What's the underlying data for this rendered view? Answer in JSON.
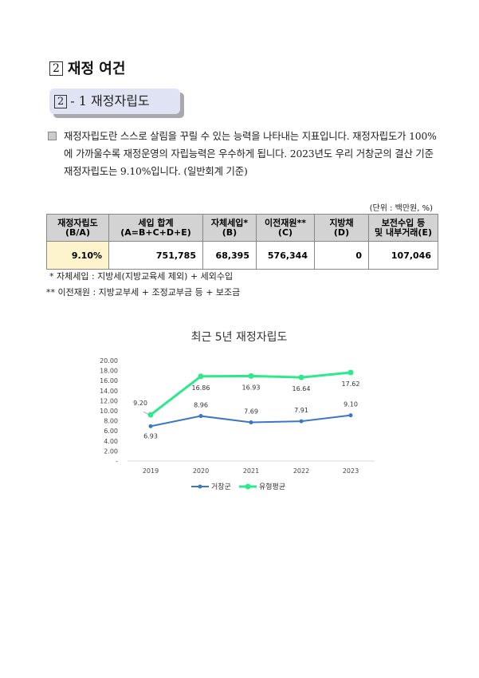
{
  "section": {
    "number": "2",
    "title": "재정 여건"
  },
  "subsection": {
    "number": "2",
    "title": "- 1 재정자립도"
  },
  "bullet_text": "재정자립도란 스스로 살림을 꾸릴 수 있는 능력을 나타내는 지표입니다. 재정자립도가 100%에 가까울수록 재정운영의 자립능력은 우수하게 됩니다. 2023년도 우리 거창군의 결산 기준 재정자립도는 9.10%입니다. (일반회계 기준)",
  "unit": "(단위 : 백만원, %)",
  "table": {
    "headers": [
      [
        "재정자립도",
        "(B/A)"
      ],
      [
        "세입 합계",
        "(A=B+C+D+E)"
      ],
      [
        "자체세입*",
        "(B)"
      ],
      [
        "이전재원**",
        "(C)"
      ],
      [
        "지방채",
        "(D)"
      ],
      [
        "보전수입 등",
        "및 내부거래(E)"
      ]
    ],
    "row": [
      "9.10%",
      "751,785",
      "68,395",
      "576,344",
      "0",
      "107,046"
    ]
  },
  "footnotes": [
    "* 자체세입 : 지방세(지방교육세 제외) + 세외수입",
    "** 이전재원 : 지방교부세 + 조정교부금 등 + 보조금"
  ],
  "chart_data": {
    "type": "line",
    "title": "최근 5년 재정자립도",
    "categories": [
      "2019",
      "2020",
      "2021",
      "2022",
      "2023"
    ],
    "yticks": [
      "-",
      "2.00",
      "4.00",
      "6.00",
      "8.00",
      "10.00",
      "12.00",
      "14.00",
      "16.00",
      "18.00",
      "20.00"
    ],
    "ylim": [
      0,
      20
    ],
    "grid": false,
    "legend": "bottom",
    "series": [
      {
        "name": "거창군",
        "values": [
          6.93,
          8.96,
          7.69,
          7.91,
          9.1
        ],
        "labels": [
          "6.93",
          "8.96",
          "7.69",
          "7.91",
          "9.10"
        ],
        "color": "#3a78c4"
      },
      {
        "name": "유형평균",
        "values": [
          9.2,
          16.86,
          16.93,
          16.64,
          17.62
        ],
        "labels": [
          "9.20",
          "16.86",
          "16.93",
          "16.64",
          "17.62"
        ],
        "color": "#2ee88c"
      }
    ]
  }
}
